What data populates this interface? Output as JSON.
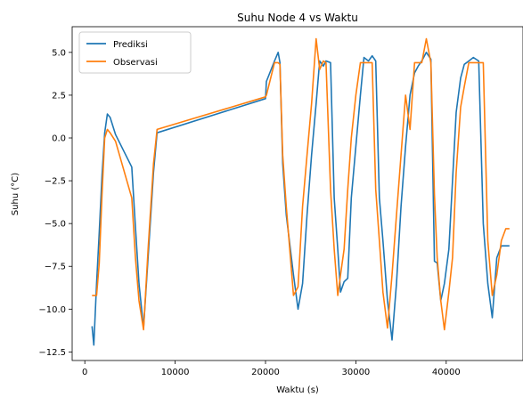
{
  "chart_data": {
    "type": "line",
    "title": "Suhu Node 4 vs Waktu",
    "xlabel": "Waktu (s)",
    "ylabel": "Suhu (°C)",
    "xlim": [
      -1400,
      48500
    ],
    "ylim": [
      -13.0,
      6.5
    ],
    "xticks": [
      0,
      10000,
      20000,
      30000,
      40000
    ],
    "xtick_labels": [
      "0",
      "10000",
      "20000",
      "30000",
      "40000"
    ],
    "yticks": [
      -12.5,
      -10.0,
      -7.5,
      -5.0,
      -2.5,
      0.0,
      2.5,
      5.0
    ],
    "ytick_labels": [
      "−12.5",
      "−10.0",
      "−7.5",
      "−5.0",
      "−2.5",
      "0.0",
      "2.5",
      "5.0"
    ],
    "grid": false,
    "legend_position": "top-left",
    "series": [
      {
        "name": "Prediksi",
        "color": "#1f77b4",
        "x": [
          800,
          1000,
          1300,
          1600,
          1900,
          2200,
          2500,
          2800,
          3400,
          5200,
          5600,
          6000,
          6500,
          7000,
          7600,
          8000,
          20000,
          20100,
          21000,
          21400,
          21600,
          21900,
          22300,
          23100,
          23600,
          24100,
          24600,
          25100,
          25600,
          26000,
          26400,
          26700,
          27200,
          27600,
          28000,
          28300,
          28700,
          29100,
          29500,
          30000,
          30500,
          30900,
          31400,
          31800,
          32200,
          32600,
          33000,
          33500,
          34000,
          34500,
          35000,
          35500,
          36000,
          36500,
          36900,
          37300,
          37800,
          38300,
          38700,
          39000,
          39400,
          39800,
          40300,
          40700,
          41100,
          41600,
          42000,
          42500,
          43000,
          43600,
          44100,
          44600,
          45100,
          45600,
          46100,
          46600,
          47000
        ],
        "y": [
          -11.0,
          -12.1,
          -8.5,
          -5.5,
          -2.2,
          0.3,
          1.4,
          1.2,
          0.2,
          -1.7,
          -5.2,
          -8.5,
          -11.1,
          -7.0,
          -2.0,
          0.3,
          2.3,
          3.3,
          4.5,
          5.0,
          4.4,
          -1.5,
          -4.5,
          -8.0,
          -10.0,
          -8.5,
          -4.5,
          -1.0,
          2.0,
          4.5,
          4.2,
          4.5,
          4.4,
          -3.5,
          -6.5,
          -9.0,
          -8.4,
          -8.2,
          -3.5,
          -0.5,
          2.5,
          4.7,
          4.5,
          4.8,
          4.5,
          -3.5,
          -6.0,
          -9.5,
          -11.8,
          -8.5,
          -4.0,
          -0.5,
          2.5,
          3.8,
          4.2,
          4.5,
          5.0,
          4.6,
          -7.2,
          -7.3,
          -9.5,
          -8.5,
          -6.5,
          -2.5,
          1.5,
          3.5,
          4.3,
          4.5,
          4.7,
          4.5,
          -5.0,
          -8.5,
          -10.5,
          -7.0,
          -6.3,
          -6.3,
          -6.3
        ]
      },
      {
        "name": "Observasi",
        "color": "#ff7f0e",
        "x": [
          800,
          1300,
          1600,
          1900,
          2200,
          2500,
          2800,
          3400,
          5200,
          5600,
          6000,
          6500,
          7000,
          7600,
          8000,
          20000,
          20100,
          21000,
          21400,
          21600,
          21900,
          22300,
          23100,
          23600,
          24100,
          24600,
          25100,
          25600,
          26000,
          26400,
          26700,
          27200,
          27600,
          28000,
          28300,
          28700,
          29100,
          29500,
          30000,
          30500,
          30900,
          31400,
          31800,
          32200,
          32600,
          33000,
          33500,
          34000,
          34500,
          35000,
          35500,
          36000,
          36500,
          36900,
          37300,
          37800,
          38300,
          38700,
          39000,
          39400,
          39800,
          40300,
          40700,
          41100,
          41600,
          42000,
          42500,
          43000,
          43600,
          44100,
          44600,
          45100,
          45600,
          46100,
          46600,
          47000
        ],
        "y": [
          -9.2,
          -9.2,
          -7.3,
          -3.3,
          0.0,
          0.5,
          0.3,
          -0.2,
          -3.5,
          -7.0,
          -9.5,
          -11.2,
          -6.5,
          -1.5,
          0.5,
          2.4,
          2.5,
          4.4,
          4.4,
          4.3,
          -1.0,
          -4.0,
          -9.2,
          -8.7,
          -4.0,
          -1.0,
          2.0,
          5.8,
          4.0,
          4.5,
          4.4,
          -3.0,
          -6.5,
          -9.2,
          -8.0,
          -6.5,
          -3.0,
          0.0,
          2.5,
          4.4,
          4.4,
          4.4,
          4.4,
          -3.0,
          -6.0,
          -9.0,
          -11.1,
          -8.0,
          -4.5,
          -1.0,
          2.5,
          0.5,
          4.4,
          4.4,
          4.4,
          5.8,
          4.4,
          -3.3,
          -7.0,
          -9.5,
          -11.2,
          -9.0,
          -7.0,
          -2.0,
          1.8,
          3.0,
          4.4,
          4.4,
          4.4,
          4.4,
          -6.0,
          -9.2,
          -8.0,
          -6.0,
          -5.3,
          -5.3
        ]
      }
    ]
  }
}
